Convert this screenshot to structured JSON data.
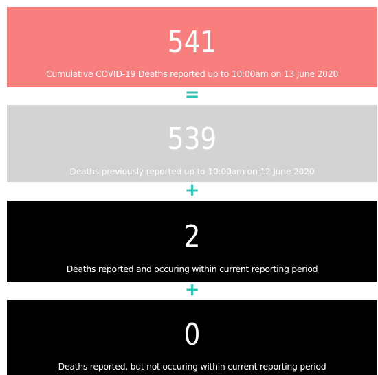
{
  "cards": [
    {
      "value": 541,
      "caption": "Cumulative COVID-19 Deaths reported up to 10:00am on 13 June 2020"
    },
    {
      "value": 539,
      "caption": "Deaths previously reported up to 10:00am on 12 June 2020"
    },
    {
      "value": 2,
      "caption": "Deaths reported and occuring within current reporting period"
    },
    {
      "value": 0,
      "caption": "Deaths reported, but not occuring within current reporting period"
    }
  ],
  "operators": [
    "=",
    "+",
    "+"
  ]
}
